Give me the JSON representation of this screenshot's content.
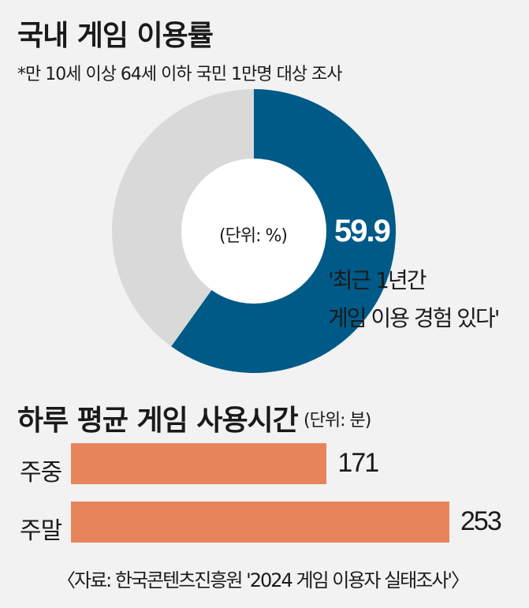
{
  "donut_section": {
    "title": "국내 게임 이용률",
    "subtitle": "*만 10세 이상 64세 이하 국민 1만명 대상 조사",
    "unit": "(단위: %)",
    "value_label": "59.9",
    "annotation_line1": "'최근 1년간",
    "annotation_line2": "게임 이용 경험 있다'",
    "colors": {
      "primary": "#005a87",
      "remainder": "#d9d9d9",
      "hole": "#ffffff"
    }
  },
  "bar_section": {
    "title": "하루 평균 게임 사용시간",
    "unit": "(단위: 분)",
    "bar_color": "#e8845c"
  },
  "source": "〈자료: 한국콘텐츠진흥원 '2024 게임 이용자 실태조사'〉",
  "chart_data": [
    {
      "type": "pie",
      "title": "국내 게임 이용률",
      "unit": "%",
      "values": [
        59.9,
        40.1
      ],
      "labels": [
        "'최근 1년간 게임 이용 경험 있다'",
        ""
      ],
      "colors": [
        "#005a87",
        "#d9d9d9"
      ]
    },
    {
      "type": "bar",
      "orientation": "horizontal",
      "title": "하루 평균 게임 사용시간",
      "unit": "분",
      "categories": [
        "주중",
        "주말"
      ],
      "values": [
        171,
        253
      ],
      "colors": [
        "#e8845c",
        "#e8845c"
      ]
    }
  ]
}
